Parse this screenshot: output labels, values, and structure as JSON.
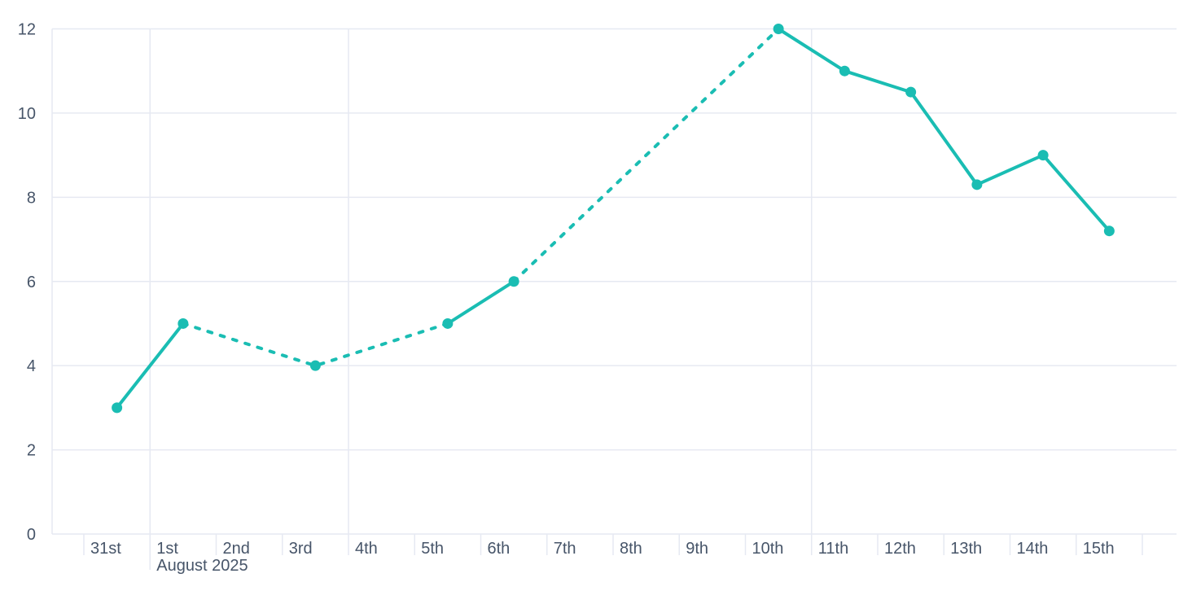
{
  "chart_data": {
    "type": "line",
    "title": "",
    "xlabel": "",
    "ylabel": "",
    "legend": "none",
    "grid": true,
    "ylim": [
      0,
      12
    ],
    "y_ticks": [
      0,
      2,
      4,
      6,
      8,
      10,
      12
    ],
    "x_tick_labels": [
      "31st",
      "1st",
      "2nd",
      "3rd",
      "4th",
      "5th",
      "6th",
      "7th",
      "8th",
      "9th",
      "10th",
      "11th",
      "12th",
      "13th",
      "14th",
      "15th"
    ],
    "x_axis_month_label": "August 2025",
    "month_label_anchor": "1st",
    "vertical_gridlines_at": [
      "1st",
      "4th",
      "11th"
    ],
    "points": [
      {
        "x": "31st",
        "y": 3
      },
      {
        "x": "1st",
        "y": 5
      },
      {
        "x": "3rd",
        "y": 4
      },
      {
        "x": "5th",
        "y": 5
      },
      {
        "x": "6th",
        "y": 6
      },
      {
        "x": "10th",
        "y": 12
      },
      {
        "x": "11th",
        "y": 11
      },
      {
        "x": "12th",
        "y": 10.5
      },
      {
        "x": "13th",
        "y": 8.3
      },
      {
        "x": "14th",
        "y": 9
      },
      {
        "x": "15th",
        "y": 7.2
      }
    ],
    "segments": [
      {
        "points": [
          "31st",
          "1st"
        ],
        "style": "solid"
      },
      {
        "points": [
          "1st",
          "3rd",
          "5th"
        ],
        "style": "dashed"
      },
      {
        "points": [
          "5th",
          "6th"
        ],
        "style": "solid"
      },
      {
        "points": [
          "6th",
          "10th"
        ],
        "style": "dashed"
      },
      {
        "points": [
          "10th",
          "11th",
          "12th",
          "13th",
          "14th",
          "15th"
        ],
        "style": "solid"
      }
    ],
    "colors": {
      "series": "#1abdb3",
      "grid": "#e6e9f2",
      "axis_text": "#475569",
      "background": "#ffffff"
    }
  }
}
